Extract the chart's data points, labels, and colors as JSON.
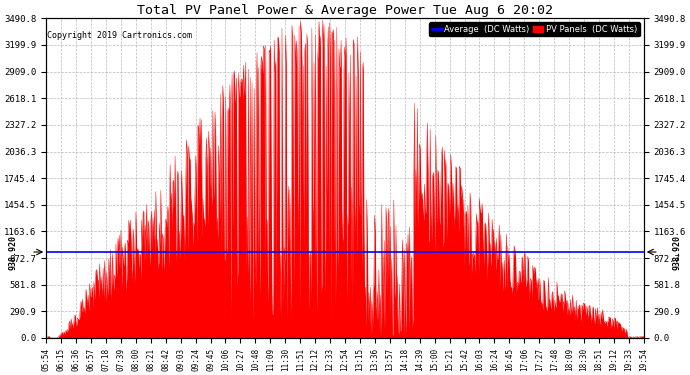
{
  "title": "Total PV Panel Power & Average Power Tue Aug 6 20:02",
  "copyright": "Copyright 2019 Cartronics.com",
  "legend_labels": [
    "Average  (DC Watts)",
    "PV Panels  (DC Watts)"
  ],
  "legend_colors": [
    "#0000ff",
    "#ff0000"
  ],
  "average_value": 938.92,
  "y_tick_labels": [
    "0.0",
    "290.9",
    "581.8",
    "872.7",
    "1163.6",
    "1454.5",
    "1745.4",
    "2036.3",
    "2327.2",
    "2618.1",
    "2909.0",
    "3199.9",
    "3490.8"
  ],
  "y_tick_values": [
    0.0,
    290.9,
    581.8,
    872.7,
    1163.6,
    1454.5,
    1745.4,
    2036.3,
    2327.2,
    2618.1,
    2909.0,
    3199.9,
    3490.8
  ],
  "ymax": 3490.8,
  "ymin": 0.0,
  "x_tick_labels": [
    "05:54",
    "06:15",
    "06:36",
    "06:57",
    "07:18",
    "07:39",
    "08:00",
    "08:21",
    "08:42",
    "09:03",
    "09:24",
    "09:45",
    "10:06",
    "10:27",
    "10:48",
    "11:09",
    "11:30",
    "11:51",
    "12:12",
    "12:33",
    "12:54",
    "13:15",
    "13:36",
    "13:57",
    "14:18",
    "14:39",
    "15:00",
    "15:21",
    "15:42",
    "16:03",
    "16:24",
    "16:45",
    "17:06",
    "17:27",
    "17:48",
    "18:09",
    "18:30",
    "18:51",
    "19:12",
    "19:33",
    "19:54"
  ],
  "fill_color": "#ff0000",
  "line_color": "#ff0000",
  "avg_line_color": "#0000ff",
  "bg_color": "#ffffff",
  "grid_color": "#aaaaaa",
  "title_color": "#000000",
  "avg_label": "938.920",
  "figwidth": 6.9,
  "figheight": 3.75,
  "dpi": 100
}
